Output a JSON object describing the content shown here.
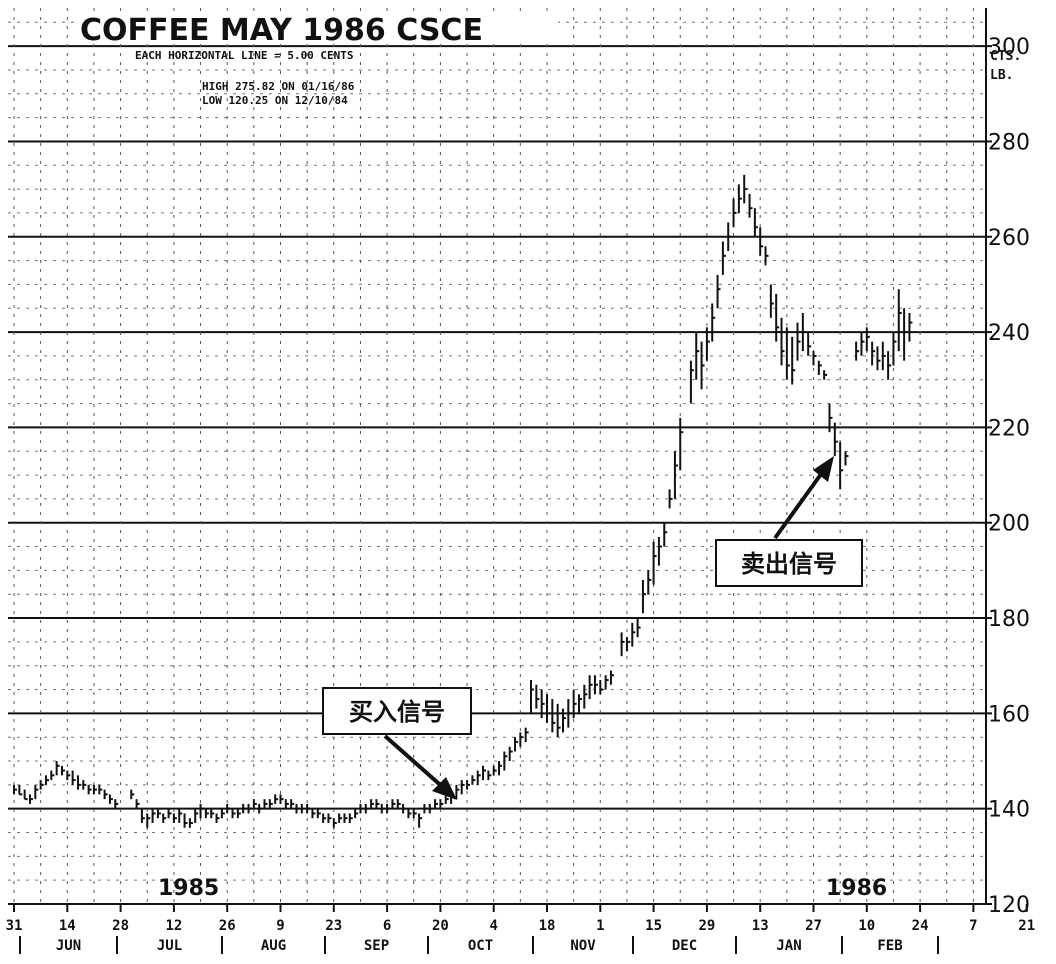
{
  "chart_data": {
    "type": "bar",
    "title": "COFFEE MAY 1986 CSCE",
    "subtitle": "EACH HORIZONTAL LINE = 5.00 CENTS",
    "high_text": "HIGH  275.82 ON 01/16/86",
    "low_text": "LOW   120.25 ON 12/10/84",
    "unit_label": [
      "CTS.",
      "LB."
    ],
    "ylim": [
      120,
      308
    ],
    "yticks": [
      120,
      140,
      160,
      180,
      200,
      220,
      240,
      260,
      280,
      300
    ],
    "x_tick_labels": [
      "31",
      "14",
      "28",
      "12",
      "26",
      "9",
      "23",
      "6",
      "20",
      "4",
      "18",
      "1",
      "15",
      "29",
      "13",
      "27",
      "10",
      "24",
      "7",
      "21",
      "7"
    ],
    "months": [
      "JUN",
      "JUL",
      "AUG",
      "SEP",
      "OCT",
      "NOV",
      "DEC",
      "JAN",
      "FEB"
    ],
    "years": [
      "1985",
      "1986"
    ],
    "grid": true,
    "series": [
      {
        "values": [
          [
            0,
            145,
            143,
            144
          ],
          [
            1,
            145,
            143,
            143
          ],
          [
            2,
            144,
            142,
            142
          ],
          [
            3,
            143,
            141,
            142
          ],
          [
            4,
            145,
            142,
            144
          ],
          [
            5,
            146,
            144,
            145
          ],
          [
            6,
            147,
            145,
            146
          ],
          [
            7,
            148,
            146,
            147
          ],
          [
            8,
            150,
            147,
            149
          ],
          [
            9,
            149,
            147,
            148
          ],
          [
            10,
            148,
            146,
            147
          ],
          [
            11,
            148,
            145,
            146
          ],
          [
            12,
            147,
            144,
            145
          ],
          [
            13,
            146,
            144,
            145
          ],
          [
            14,
            145,
            143,
            144
          ],
          [
            15,
            145,
            143,
            144
          ],
          [
            16,
            145,
            143,
            144
          ],
          [
            17,
            144,
            142,
            143
          ],
          [
            18,
            143,
            141,
            142
          ],
          [
            19,
            142,
            140,
            141
          ],
          [
            22,
            144,
            142,
            143
          ],
          [
            23,
            142,
            140,
            141
          ],
          [
            24,
            140,
            137,
            138
          ],
          [
            25,
            139,
            136,
            138
          ],
          [
            26,
            140,
            137,
            139
          ],
          [
            27,
            140,
            138,
            139
          ],
          [
            28,
            139,
            137,
            138
          ],
          [
            29,
            140,
            138,
            139
          ],
          [
            30,
            139,
            137,
            138
          ],
          [
            31,
            140,
            137,
            139
          ],
          [
            32,
            139,
            136,
            137
          ],
          [
            33,
            138,
            136,
            137
          ],
          [
            34,
            140,
            137,
            139
          ],
          [
            35,
            141,
            138,
            140
          ],
          [
            36,
            140,
            138,
            139
          ],
          [
            37,
            140,
            138,
            139
          ],
          [
            38,
            139,
            137,
            138
          ],
          [
            39,
            140,
            138,
            139
          ],
          [
            40,
            141,
            139,
            140
          ],
          [
            41,
            140,
            138,
            139
          ],
          [
            42,
            140,
            138,
            139
          ],
          [
            43,
            141,
            139,
            140
          ],
          [
            44,
            141,
            139,
            140
          ],
          [
            45,
            142,
            140,
            141
          ],
          [
            46,
            141,
            139,
            140
          ],
          [
            47,
            142,
            140,
            141
          ],
          [
            48,
            142,
            140,
            141
          ],
          [
            49,
            143,
            141,
            142
          ],
          [
            50,
            143,
            141,
            142
          ],
          [
            51,
            142,
            140,
            141
          ],
          [
            52,
            142,
            140,
            141
          ],
          [
            53,
            141,
            139,
            140
          ],
          [
            54,
            141,
            139,
            140
          ],
          [
            55,
            141,
            139,
            140
          ],
          [
            56,
            140,
            138,
            139
          ],
          [
            57,
            140,
            138,
            139
          ],
          [
            58,
            139,
            137,
            138
          ],
          [
            59,
            139,
            137,
            138
          ],
          [
            60,
            138,
            136,
            137
          ],
          [
            61,
            139,
            137,
            138
          ],
          [
            62,
            139,
            137,
            138
          ],
          [
            63,
            139,
            137,
            138
          ],
          [
            64,
            140,
            138,
            139
          ],
          [
            65,
            141,
            139,
            140
          ],
          [
            66,
            141,
            139,
            140
          ],
          [
            67,
            142,
            140,
            141
          ],
          [
            68,
            142,
            140,
            141
          ],
          [
            69,
            141,
            139,
            140
          ],
          [
            70,
            141,
            139,
            140
          ],
          [
            71,
            142,
            140,
            141
          ],
          [
            72,
            142,
            140,
            141
          ],
          [
            73,
            141,
            139,
            140
          ],
          [
            74,
            140,
            138,
            139
          ],
          [
            75,
            140,
            138,
            139
          ],
          [
            76,
            139,
            136,
            138
          ],
          [
            77,
            141,
            139,
            140
          ],
          [
            78,
            141,
            139,
            140
          ],
          [
            79,
            142,
            140,
            141
          ],
          [
            80,
            142,
            140,
            141
          ],
          [
            81,
            143,
            141,
            142
          ],
          [
            82,
            144,
            141,
            143
          ],
          [
            83,
            145,
            142,
            144
          ],
          [
            84,
            146,
            143,
            145
          ],
          [
            85,
            146,
            144,
            145
          ],
          [
            86,
            147,
            145,
            146
          ],
          [
            87,
            148,
            145,
            147
          ],
          [
            88,
            149,
            146,
            148
          ],
          [
            89,
            148,
            146,
            147
          ],
          [
            90,
            149,
            147,
            148
          ],
          [
            91,
            150,
            147,
            149
          ],
          [
            92,
            152,
            148,
            151
          ],
          [
            93,
            153,
            150,
            152
          ],
          [
            94,
            155,
            152,
            154
          ],
          [
            95,
            156,
            153,
            155
          ],
          [
            96,
            157,
            154,
            156
          ],
          [
            97,
            167,
            160,
            165
          ],
          [
            98,
            166,
            161,
            163
          ],
          [
            99,
            165,
            159,
            162
          ],
          [
            100,
            164,
            158,
            160
          ],
          [
            101,
            163,
            156,
            158
          ],
          [
            102,
            162,
            155,
            157
          ],
          [
            103,
            161,
            156,
            159
          ],
          [
            104,
            163,
            157,
            160
          ],
          [
            105,
            165,
            159,
            162
          ],
          [
            106,
            164,
            160,
            163
          ],
          [
            107,
            166,
            161,
            164
          ],
          [
            108,
            168,
            163,
            166
          ],
          [
            109,
            168,
            164,
            166
          ],
          [
            110,
            167,
            164,
            165
          ],
          [
            111,
            168,
            165,
            167
          ],
          [
            112,
            169,
            166,
            168
          ],
          [
            114,
            177,
            172,
            175
          ],
          [
            115,
            176,
            173,
            175
          ],
          [
            116,
            179,
            174,
            177
          ],
          [
            117,
            180,
            176,
            178
          ],
          [
            118,
            188,
            181,
            185
          ],
          [
            119,
            190,
            185,
            188
          ],
          [
            120,
            196,
            187,
            193
          ],
          [
            121,
            197,
            191,
            195
          ],
          [
            122,
            200,
            195,
            198
          ],
          [
            123,
            207,
            203,
            205
          ],
          [
            124,
            215,
            205,
            212
          ],
          [
            125,
            222,
            211,
            219
          ],
          [
            127,
            234,
            225,
            232
          ],
          [
            128,
            240,
            230,
            236
          ],
          [
            129,
            238,
            228,
            233
          ],
          [
            130,
            241,
            234,
            238
          ],
          [
            131,
            246,
            238,
            243
          ],
          [
            132,
            252,
            245,
            249
          ],
          [
            133,
            259,
            252,
            256
          ],
          [
            134,
            263,
            257,
            260
          ],
          [
            135,
            268,
            262,
            265
          ],
          [
            136,
            271,
            265,
            268
          ],
          [
            137,
            273,
            267,
            270
          ],
          [
            138,
            269,
            264,
            266
          ],
          [
            139,
            266,
            260,
            262
          ],
          [
            140,
            262,
            256,
            258
          ],
          [
            141,
            258,
            254,
            256
          ],
          [
            142,
            250,
            243,
            246
          ],
          [
            143,
            248,
            238,
            241
          ],
          [
            144,
            243,
            233,
            236
          ],
          [
            145,
            241,
            230,
            233
          ],
          [
            146,
            239,
            229,
            232
          ],
          [
            147,
            242,
            234,
            238
          ],
          [
            148,
            244,
            236,
            240
          ],
          [
            149,
            240,
            235,
            237
          ],
          [
            150,
            236,
            233,
            235
          ],
          [
            151,
            234,
            231,
            233
          ],
          [
            152,
            232,
            230,
            231
          ],
          [
            153,
            225,
            219,
            222
          ],
          [
            154,
            221,
            214,
            217
          ],
          [
            155,
            217,
            207,
            211
          ],
          [
            156,
            215,
            212,
            214
          ],
          [
            158,
            238,
            234,
            236
          ],
          [
            159,
            240,
            235,
            238
          ],
          [
            160,
            241,
            236,
            239
          ],
          [
            161,
            238,
            233,
            236
          ],
          [
            162,
            237,
            232,
            234
          ],
          [
            163,
            238,
            232,
            235
          ],
          [
            164,
            236,
            230,
            233
          ],
          [
            165,
            240,
            233,
            238
          ],
          [
            166,
            249,
            236,
            244
          ],
          [
            167,
            245,
            234,
            240
          ],
          [
            168,
            244,
            238,
            242
          ]
        ]
      }
    ]
  },
  "annotations": {
    "buy_signal": "买入信号",
    "sell_signal": "卖出信号"
  }
}
